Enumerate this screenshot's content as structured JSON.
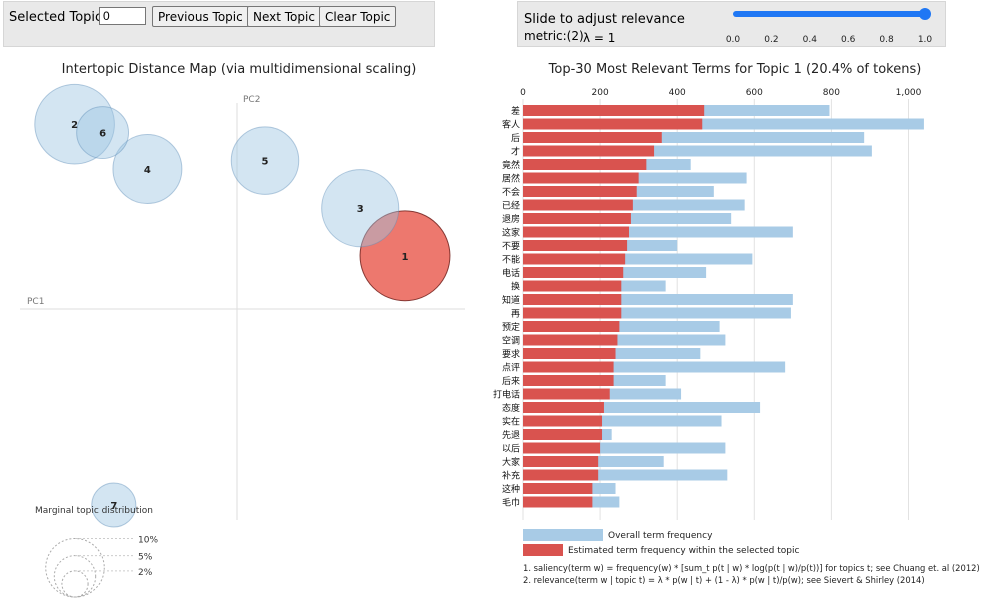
{
  "toolbar": {
    "selected_label": "Selected Topic:",
    "selected_value": "0",
    "prev_label": "Previous Topic",
    "next_label": "Next Topic",
    "clear_label": "Clear Topic"
  },
  "slider": {
    "label_line1": "Slide to adjust relevance",
    "label_line2": "metric:(2)",
    "lambda_text": "λ = 1",
    "value": 1.0,
    "ticks": [
      "0.0",
      "0.2",
      "0.4",
      "0.6",
      "0.8",
      "1.0"
    ],
    "color": "#1f77f4"
  },
  "chart_data": [
    {
      "type": "scatter",
      "title": "Intertopic Distance Map (via multidimensional scaling)",
      "xlabel": "PC1",
      "ylabel": "PC2",
      "bubble_color": "#9ec5e3",
      "selected_color": "#e8564a",
      "selected_topic": "1",
      "topics": [
        {
          "id": "1",
          "pc1": 0.3,
          "pc2": 0.095,
          "size_pct": 20.4
        },
        {
          "id": "2",
          "pc1": -0.29,
          "pc2": 0.33,
          "size_pct": 16
        },
        {
          "id": "3",
          "pc1": 0.22,
          "pc2": 0.18,
          "size_pct": 15
        },
        {
          "id": "4",
          "pc1": -0.16,
          "pc2": 0.25,
          "size_pct": 12
        },
        {
          "id": "5",
          "pc1": 0.05,
          "pc2": 0.265,
          "size_pct": 11.5
        },
        {
          "id": "6",
          "pc1": -0.24,
          "pc2": 0.315,
          "size_pct": 6.8
        },
        {
          "id": "7",
          "pc1": -0.22,
          "pc2": -0.35,
          "size_pct": 4.9
        }
      ],
      "legend": {
        "title": "Marginal topic distribution",
        "sizes": [
          {
            "label": "2%",
            "pct": 2
          },
          {
            "label": "5%",
            "pct": 5
          },
          {
            "label": "10%",
            "pct": 10
          }
        ]
      }
    },
    {
      "type": "bar",
      "title": "Top-30 Most Relevant Terms for Topic 1 (20.4% of tokens)",
      "xlim": [
        0,
        1000
      ],
      "xticks": [
        "0",
        "200",
        "400",
        "600",
        "800",
        "1,000"
      ],
      "overall_color": "#a8cbe6",
      "topic_color": "#d9534f",
      "categories": [
        "差",
        "客人",
        "后",
        "才",
        "竟然",
        "居然",
        "不会",
        "已经",
        "退房",
        "这家",
        "不要",
        "不能",
        "电话",
        "换",
        "知道",
        "再",
        "预定",
        "空调",
        "要求",
        "点评",
        "后来",
        "打电话",
        "态度",
        "实在",
        "先退",
        "以后",
        "大家",
        "补充",
        "这种",
        "毛巾"
      ],
      "series": [
        {
          "name": "Overall term frequency",
          "values": [
            795,
            1040,
            885,
            905,
            435,
            580,
            495,
            575,
            540,
            700,
            400,
            595,
            475,
            370,
            700,
            695,
            510,
            525,
            460,
            680,
            370,
            410,
            615,
            515,
            230,
            525,
            365,
            530,
            240,
            250
          ]
        },
        {
          "name": "Estimated term frequency within the selected topic",
          "values": [
            470,
            465,
            360,
            340,
            320,
            300,
            295,
            285,
            280,
            275,
            270,
            265,
            260,
            255,
            255,
            255,
            250,
            245,
            240,
            235,
            235,
            225,
            210,
            205,
            205,
            200,
            195,
            195,
            180,
            180
          ]
        }
      ],
      "legend": [
        "Overall term frequency",
        "Estimated term frequency within the selected topic"
      ],
      "notes": [
        "1. saliency(term w) = frequency(w) * [sum_t p(t | w) * log(p(t | w)/p(t))] for topics t; see Chuang et. al (2012)",
        "2. relevance(term w | topic t) = λ * p(w | t) + (1 - λ) * p(w | t)/p(w); see Sievert & Shirley (2014)"
      ]
    }
  ]
}
